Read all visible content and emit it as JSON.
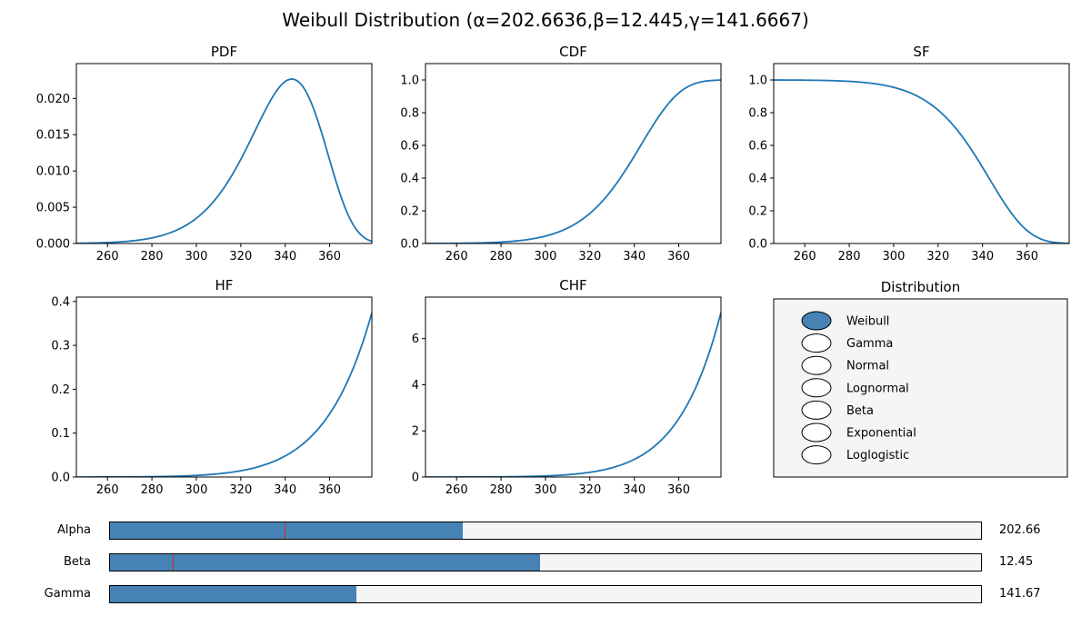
{
  "title": "Weibull Distribution (α=202.6636,β=12.445,γ=141.6667)",
  "colors": {
    "line": "#1f77b4",
    "fill": "#4682b4",
    "marker": "#d62728",
    "panel": "#f5f5f5"
  },
  "chart_data": [
    {
      "type": "line",
      "title": "PDF",
      "function": "pdf",
      "xlim": [
        246,
        379
      ],
      "ylim": [
        0,
        0.0248
      ],
      "xticks": [
        260,
        280,
        300,
        320,
        340,
        360
      ],
      "xtick_labels": [
        "260",
        "280",
        "300",
        "320",
        "340",
        "360"
      ],
      "yticks": [
        0,
        0.005,
        0.01,
        0.015,
        0.02
      ],
      "ytick_labels": [
        "0.000",
        "0.005",
        "0.010",
        "0.015",
        "0.020"
      ]
    },
    {
      "type": "line",
      "title": "CDF",
      "function": "cdf",
      "xlim": [
        246,
        379
      ],
      "ylim": [
        0,
        1.1
      ],
      "xticks": [
        260,
        280,
        300,
        320,
        340,
        360
      ],
      "xtick_labels": [
        "260",
        "280",
        "300",
        "320",
        "340",
        "360"
      ],
      "yticks": [
        0,
        0.2,
        0.4,
        0.6,
        0.8,
        1.0
      ],
      "ytick_labels": [
        "0.0",
        "0.2",
        "0.4",
        "0.6",
        "0.8",
        "1.0"
      ]
    },
    {
      "type": "line",
      "title": "SF",
      "function": "sf",
      "xlim": [
        246,
        379
      ],
      "ylim": [
        0,
        1.1
      ],
      "xticks": [
        260,
        280,
        300,
        320,
        340,
        360
      ],
      "xtick_labels": [
        "260",
        "280",
        "300",
        "320",
        "340",
        "360"
      ],
      "yticks": [
        0,
        0.2,
        0.4,
        0.6,
        0.8,
        1.0
      ],
      "ytick_labels": [
        "0.0",
        "0.2",
        "0.4",
        "0.6",
        "0.8",
        "1.0"
      ]
    },
    {
      "type": "line",
      "title": "HF",
      "function": "hf",
      "xlim": [
        246,
        379
      ],
      "ylim": [
        0,
        0.41
      ],
      "xticks": [
        260,
        280,
        300,
        320,
        340,
        360
      ],
      "xtick_labels": [
        "260",
        "280",
        "300",
        "320",
        "340",
        "360"
      ],
      "yticks": [
        0,
        0.1,
        0.2,
        0.3,
        0.4
      ],
      "ytick_labels": [
        "0.0",
        "0.1",
        "0.2",
        "0.3",
        "0.4"
      ]
    },
    {
      "type": "line",
      "title": "CHF",
      "function": "chf",
      "xlim": [
        246,
        379
      ],
      "ylim": [
        0,
        7.8
      ],
      "xticks": [
        260,
        280,
        300,
        320,
        340,
        360
      ],
      "xtick_labels": [
        "260",
        "280",
        "300",
        "320",
        "340",
        "360"
      ],
      "yticks": [
        0,
        2,
        4,
        6
      ],
      "ytick_labels": [
        "0",
        "2",
        "4",
        "6"
      ]
    }
  ],
  "distribution_panel": {
    "title": "Distribution",
    "options": [
      "Weibull",
      "Gamma",
      "Normal",
      "Lognormal",
      "Beta",
      "Exponential",
      "Loglogistic"
    ],
    "selected": "Weibull"
  },
  "sliders": [
    {
      "label": "Alpha",
      "value_text": "202.66",
      "fill_fraction": 0.405,
      "marker_fraction": 0.2
    },
    {
      "label": "Beta",
      "value_text": "12.45",
      "fill_fraction": 0.494,
      "marker_fraction": 0.072
    },
    {
      "label": "Gamma",
      "value_text": "141.67",
      "fill_fraction": 0.283,
      "marker_fraction": null
    }
  ]
}
